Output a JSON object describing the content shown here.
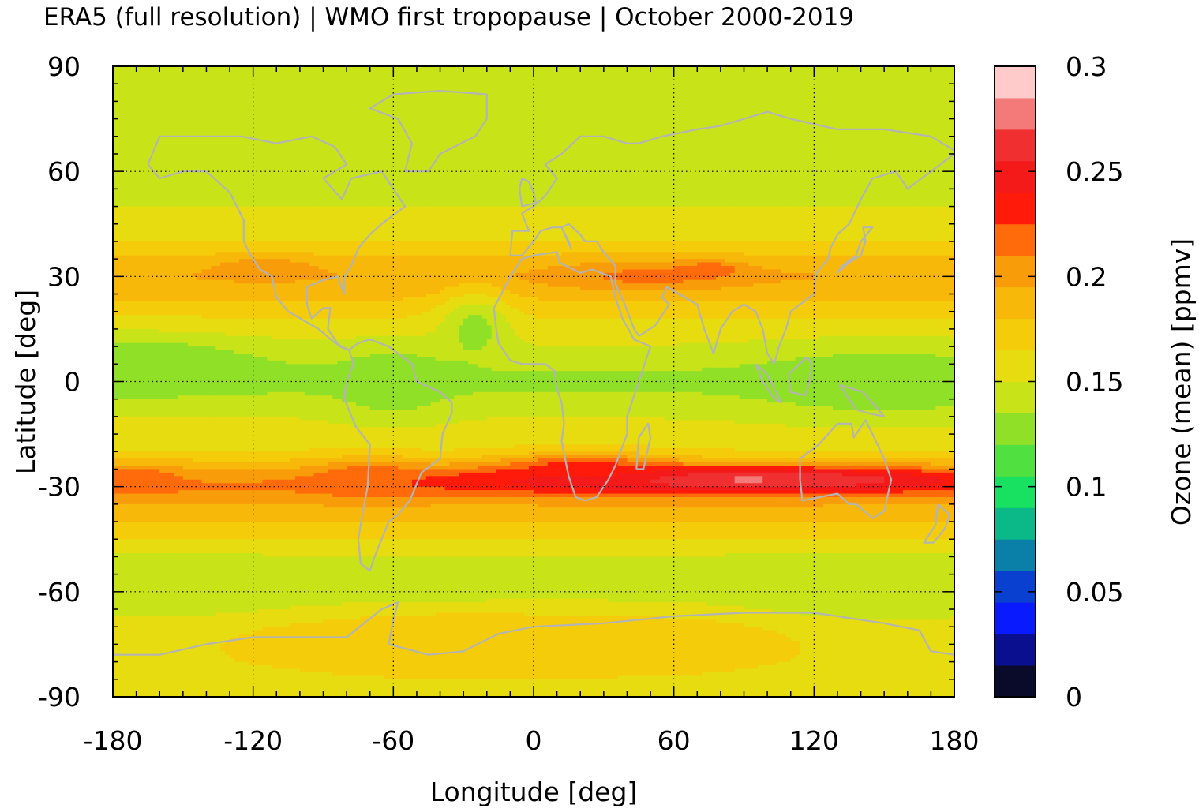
{
  "chart_data": {
    "type": "heatmap",
    "title": "ERA5 (full resolution) | WMO first tropopause | October 2000-2019",
    "xlabel": "Longitude [deg]",
    "ylabel": "Latitude [deg]",
    "xlim": [
      -180,
      180
    ],
    "ylim": [
      -90,
      90
    ],
    "x_ticks": [
      -180,
      -120,
      -60,
      0,
      60,
      120,
      180
    ],
    "y_ticks": [
      -90,
      -60,
      -30,
      0,
      30,
      60,
      90
    ],
    "x_tick_labels": [
      "-180",
      "-120",
      "-60",
      "0",
      "60",
      "120",
      "180"
    ],
    "y_tick_labels": [
      "-90",
      "-60",
      "-30",
      "0",
      "30",
      "60",
      "90"
    ],
    "grid": true,
    "grid_style": "dotted",
    "coastlines": true,
    "coastline_color": "#b4b4b4",
    "colorbar": {
      "label": "Ozone (mean) [ppmv]",
      "range": [
        0,
        0.3
      ],
      "ticks": [
        0,
        0.05,
        0.1,
        0.15,
        0.2,
        0.25,
        0.3
      ],
      "tick_labels": [
        "0",
        "0.05",
        "0.1",
        "0.15",
        "0.2",
        "0.25",
        "0.3"
      ],
      "levels": 20,
      "colors": [
        "#0a0a2a",
        "#0a0f90",
        "#0a1aff",
        "#0a40d0",
        "#0a7fa8",
        "#0ab888",
        "#18e060",
        "#50e040",
        "#90e028",
        "#c8e418",
        "#e6dc10",
        "#f4cc0a",
        "#f8b80a",
        "#f89c0a",
        "#ff6a0a",
        "#ff1a0a",
        "#f41a1a",
        "#f03030",
        "#f47a7a",
        "#ffcaca"
      ]
    },
    "lat_profile": {
      "lat": [
        -90,
        -80,
        -70,
        -60,
        -50,
        -40,
        -35,
        -30,
        -25,
        -20,
        -10,
        0,
        10,
        20,
        25,
        30,
        35,
        40,
        50,
        60,
        70,
        80,
        90
      ],
      "values": [
        0.153,
        0.16,
        0.16,
        0.135,
        0.15,
        0.18,
        0.195,
        0.21,
        0.19,
        0.165,
        0.15,
        0.13,
        0.15,
        0.17,
        0.185,
        0.195,
        0.185,
        0.165,
        0.15,
        0.14,
        0.142,
        0.138,
        0.135
      ]
    },
    "features": [
      {
        "lon": 60,
        "lat": -28,
        "dlon": 120,
        "dlat": 4,
        "value": 0.255
      },
      {
        "lon": 110,
        "lat": -28,
        "dlon": 70,
        "dlat": 3,
        "value": 0.265
      },
      {
        "lon": 92,
        "lat": -28,
        "dlon": 8,
        "dlat": 1,
        "value": 0.28
      },
      {
        "lon": 20,
        "lat": -25,
        "dlon": 30,
        "dlat": 4,
        "value": 0.235
      },
      {
        "lon": 50,
        "lat": 30,
        "dlon": 40,
        "dlat": 4,
        "value": 0.215
      },
      {
        "lon": 75,
        "lat": 32,
        "dlon": 12,
        "dlat": 2,
        "value": 0.225
      },
      {
        "lon": -115,
        "lat": 32,
        "dlon": 20,
        "dlat": 3,
        "value": 0.21
      },
      {
        "lon": -172,
        "lat": -28,
        "dlon": 22,
        "dlat": 4,
        "value": 0.225
      },
      {
        "lon": -70,
        "lat": -28,
        "dlon": 20,
        "dlat": 5,
        "value": 0.225
      },
      {
        "lon": -175,
        "lat": 5,
        "dlon": 60,
        "dlat": 8,
        "value": 0.12
      },
      {
        "lon": 150,
        "lat": 0,
        "dlon": 60,
        "dlat": 10,
        "value": 0.125
      },
      {
        "lon": -25,
        "lat": 15,
        "dlon": 15,
        "dlat": 10,
        "value": 0.13
      },
      {
        "lon": -60,
        "lat": 0,
        "dlon": 25,
        "dlat": 10,
        "value": 0.125
      },
      {
        "lon": 130,
        "lat": -60,
        "dlon": 60,
        "dlat": 8,
        "value": 0.135
      },
      {
        "lon": -150,
        "lat": -60,
        "dlon": 60,
        "dlat": 8,
        "value": 0.14
      },
      {
        "lon": -30,
        "lat": -75,
        "dlon": 90,
        "dlat": 10,
        "value": 0.18
      },
      {
        "lon": 60,
        "lat": -75,
        "dlon": 60,
        "dlat": 10,
        "value": 0.17
      }
    ]
  }
}
